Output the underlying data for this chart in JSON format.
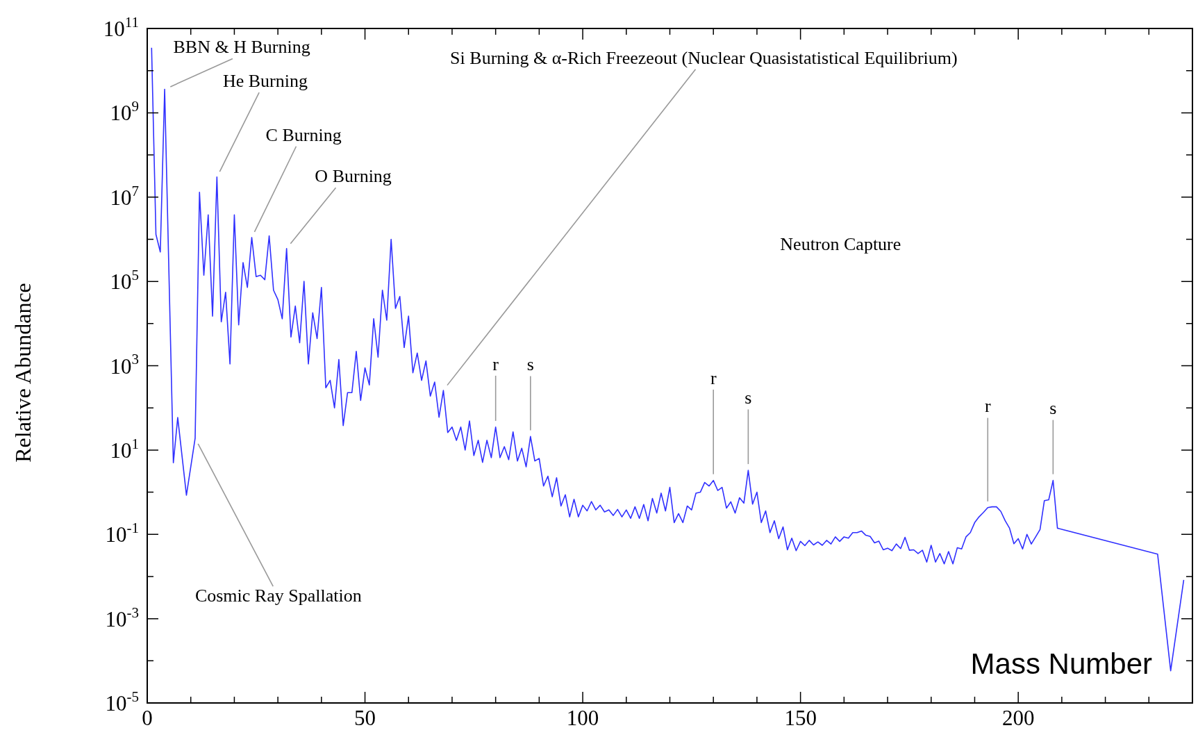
{
  "chart_data": {
    "type": "line",
    "xlabel": "Mass Number",
    "ylabel": "Relative Abundance",
    "x": [
      1,
      2,
      3,
      4,
      6,
      7,
      9,
      11,
      12,
      13,
      14,
      15,
      16,
      17,
      18,
      19,
      20,
      21,
      22,
      23,
      24,
      25,
      26,
      27,
      28,
      29,
      30,
      31,
      32,
      33,
      34,
      35,
      36,
      37,
      38,
      39,
      40,
      41,
      42,
      43,
      44,
      45,
      46,
      47,
      48,
      49,
      50,
      51,
      52,
      53,
      54,
      55,
      56,
      57,
      58,
      59,
      60,
      61,
      62,
      63,
      64,
      65,
      66,
      67,
      68,
      69,
      70,
      71,
      72,
      73,
      74,
      75,
      76,
      77,
      78,
      79,
      80,
      81,
      82,
      83,
      84,
      85,
      86,
      87,
      88,
      89,
      90,
      91,
      92,
      93,
      94,
      95,
      96,
      97,
      98,
      99,
      100,
      101,
      102,
      103,
      104,
      105,
      106,
      107,
      108,
      109,
      110,
      111,
      112,
      113,
      114,
      115,
      116,
      117,
      118,
      119,
      120,
      121,
      122,
      123,
      124,
      125,
      126,
      127,
      128,
      129,
      130,
      131,
      132,
      133,
      134,
      135,
      136,
      137,
      138,
      139,
      140,
      141,
      142,
      143,
      144,
      145,
      146,
      147,
      148,
      149,
      150,
      151,
      152,
      153,
      154,
      155,
      156,
      157,
      158,
      159,
      160,
      161,
      162,
      163,
      164,
      165,
      166,
      167,
      168,
      169,
      170,
      171,
      172,
      173,
      174,
      175,
      176,
      177,
      178,
      179,
      180,
      181,
      182,
      183,
      184,
      185,
      186,
      187,
      188,
      189,
      190,
      191,
      192,
      193,
      194,
      195,
      196,
      197,
      198,
      199,
      200,
      201,
      202,
      203,
      204,
      205,
      206,
      207,
      208,
      209,
      232,
      235,
      238
    ],
    "values": [
      35000000000.0,
      1300000.0,
      500000.0,
      3600000000.0,
      5,
      59,
      0.85,
      19,
      13000000.0,
      140000.0,
      3800000.0,
      15000.0,
      30000000.0,
      11000.0,
      55000.0,
      1100,
      3800000.0,
      9300,
      280000.0,
      72000.0,
      1100000.0,
      130000.0,
      140000.0,
      110000.0,
      1200000.0,
      62000.0,
      37000.0,
      13000.0,
      600000.0,
      4800,
      26000.0,
      3500,
      100000.0,
      1100,
      18000.0,
      4400,
      72000.0,
      300,
      450,
      100,
      1400,
      38,
      230,
      230,
      2200,
      150,
      890,
      350,
      13000.0,
      1600,
      62000.0,
      12000.0,
      1000000.0,
      23000.0,
      44000.0,
      2700,
      15000.0,
      680,
      2000,
      450,
      1300,
      190,
      410,
      60,
      260,
      26,
      35,
      17,
      35,
      10,
      49,
      7.4,
      17,
      5.1,
      17,
      6.6,
      35,
      6.6,
      12,
      5.9,
      27,
      5.5,
      11,
      4,
      21,
      5.5,
      6.3,
      1.4,
      2.4,
      0.78,
      2.2,
      0.47,
      0.87,
      0.26,
      0.68,
      0.26,
      0.49,
      0.36,
      0.6,
      0.38,
      0.49,
      0.34,
      0.38,
      0.28,
      0.39,
      0.26,
      0.38,
      0.24,
      0.45,
      0.24,
      0.51,
      0.21,
      0.71,
      0.32,
      0.95,
      0.36,
      1.3,
      0.19,
      0.31,
      0.19,
      0.47,
      0.38,
      0.95,
      1,
      1.7,
      1.4,
      1.9,
      1.1,
      1.3,
      0.42,
      0.59,
      0.32,
      0.74,
      0.55,
      3.3,
      0.52,
      1,
      0.19,
      0.36,
      0.11,
      0.21,
      0.079,
      0.15,
      0.043,
      0.081,
      0.041,
      0.068,
      0.054,
      0.072,
      0.056,
      0.066,
      0.055,
      0.072,
      0.059,
      0.087,
      0.068,
      0.087,
      0.081,
      0.11,
      0.11,
      0.12,
      0.095,
      0.089,
      0.063,
      0.069,
      0.043,
      0.047,
      0.041,
      0.059,
      0.046,
      0.085,
      0.042,
      0.043,
      0.035,
      0.042,
      0.022,
      0.055,
      0.022,
      0.035,
      0.02,
      0.039,
      0.02,
      0.048,
      0.045,
      0.087,
      0.11,
      0.19,
      0.26,
      0.33,
      0.43,
      0.45,
      0.45,
      0.35,
      0.21,
      0.14,
      0.06,
      0.079,
      0.045,
      0.1,
      0.059,
      0.087,
      0.13,
      0.63,
      0.66,
      1.9,
      0.14,
      0.034,
      5.8e-05,
      0.0083
    ],
    "color": "#3030ff",
    "marker": "none",
    "line_style": "solid",
    "log": "y",
    "xlim": [
      0,
      240
    ],
    "ylim": [
      1e-05,
      100000000000.0
    ],
    "xticks": [
      0,
      {
        "value": 10,
        "label": null
      },
      {
        "value": 20,
        "label": null
      },
      {
        "value": 30,
        "label": null
      },
      {
        "value": 40,
        "label": null
      },
      50,
      {
        "value": 60,
        "label": null
      },
      {
        "value": 70,
        "label": null
      },
      {
        "value": 80,
        "label": null
      },
      {
        "value": 90,
        "label": null
      },
      100,
      {
        "value": 110,
        "label": null
      },
      {
        "value": 120,
        "label": null
      },
      {
        "value": 130,
        "label": null
      },
      {
        "value": 140,
        "label": null
      },
      150,
      {
        "value": 160,
        "label": null
      },
      {
        "value": 170,
        "label": null
      },
      {
        "value": 180,
        "label": null
      },
      {
        "value": 190,
        "label": null
      },
      200,
      {
        "value": 210,
        "label": null
      },
      {
        "value": 220,
        "label": null
      },
      {
        "value": 230,
        "label": null
      }
    ],
    "yticks": [
      {
        "value": 1e-05,
        "label": "10$^{-5}$"
      },
      {
        "value": 0.0001,
        "label": null
      },
      {
        "value": 0.001,
        "label": "10$^{-3}$"
      },
      {
        "value": 0.01,
        "label": null
      },
      {
        "value": 0.1,
        "label": "10$^{-1}$"
      },
      {
        "value": 1,
        "label": null
      },
      {
        "value": 10,
        "label": "10$^{1}$"
      },
      {
        "value": 100,
        "label": null
      },
      {
        "value": 1000,
        "label": "10$^{3}$"
      },
      {
        "value": 10000.0,
        "label": null
      },
      {
        "value": 100000.0,
        "label": "10$^{5}$"
      },
      {
        "value": 1000000.0,
        "label": null
      },
      {
        "value": 10000000.0,
        "label": "10$^{7}$"
      },
      {
        "value": 100000000.0,
        "label": null
      },
      {
        "value": 1000000000.0,
        "label": "10$^{9}$"
      },
      {
        "value": 10000000000.0,
        "label": null
      },
      {
        "value": 100000000000.0,
        "label": "10$^{11}$"
      }
    ],
    "annotations": [
      {
        "text": "BBN & H Burning",
        "x": 4,
        "y": 3600000000.0
      },
      "He Burning",
      "C Burning",
      "O Burning",
      "Si Burning & α-Rich Freezeout (Nuclear Quasistatistical Equilibrium)",
      {
        "text": "Cosmic Ray Spallation",
        "x": 11,
        "y": 19
      },
      "Neutron Capture",
      {
        "text": "r",
        "x": 80,
        "y": 35
      },
      "s",
      {
        "text": "r",
        "x": 130,
        "y": 1.9
      },
      {
        "text": "s",
        "x": 138,
        "y": 3.3
      },
      {
        "text": "r",
        "x": 193,
        "y": 0.43
      },
      {
        "text": "s",
        "x": 208,
        "y": 1.9
      }
    ]
  }
}
